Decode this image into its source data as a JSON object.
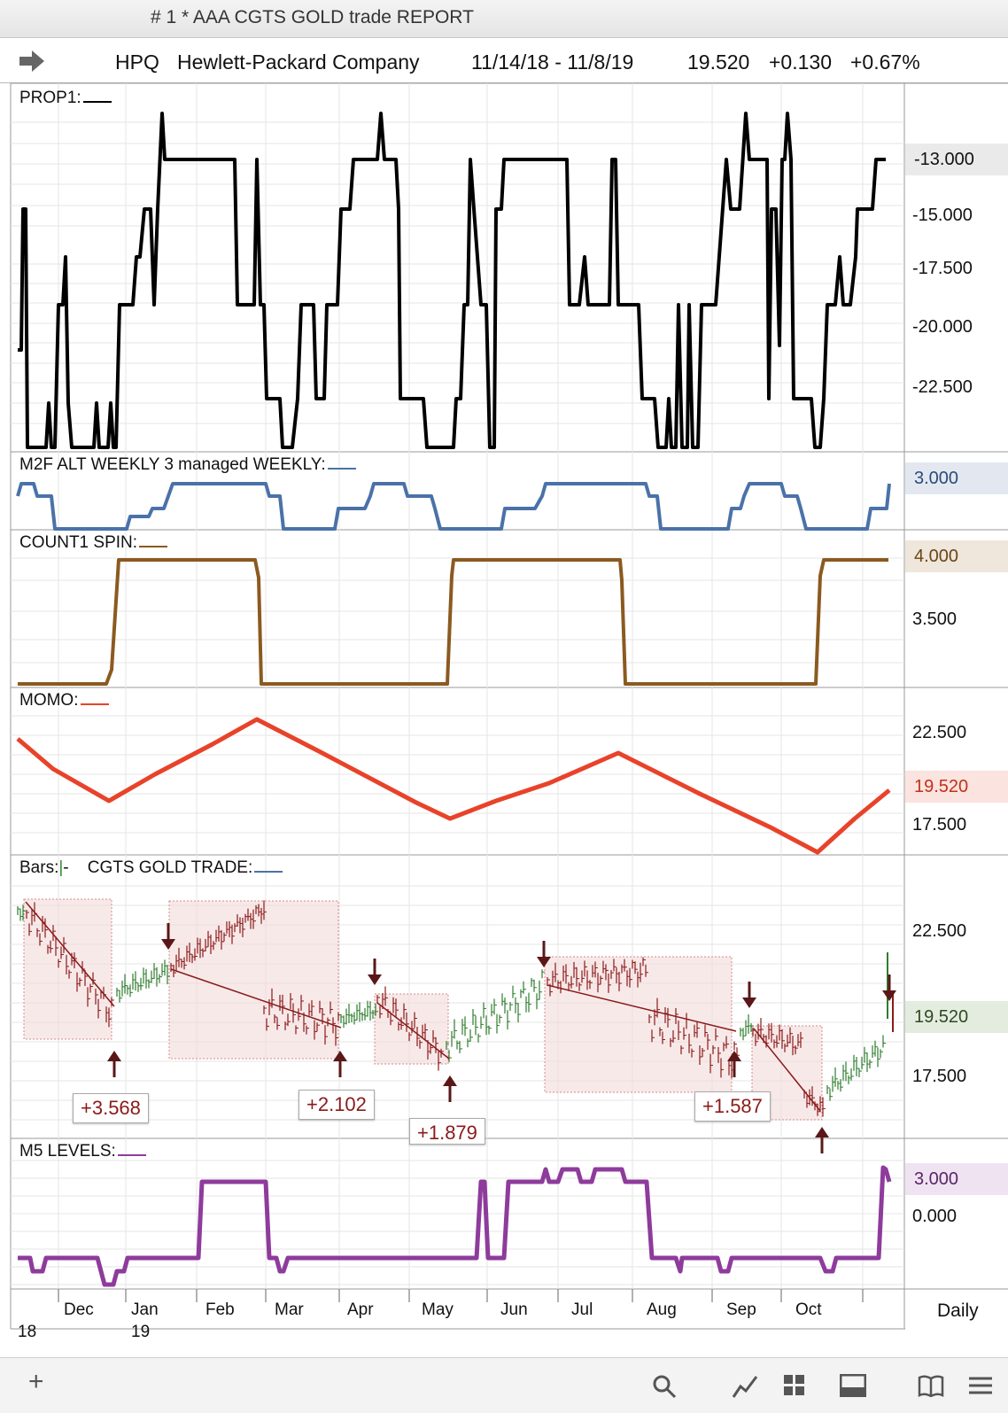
{
  "window": {
    "title": "# 1 *  AAA CGTS GOLD trade REPORT"
  },
  "header": {
    "symbol": "HPQ",
    "company": "Hewlett-Packard Company",
    "date_range": "11/14/18 - 11/8/19",
    "last": "19.520",
    "change": "+0.130",
    "change_pct": "+0.67%"
  },
  "panels": {
    "prop1": {
      "label": "PROP1:",
      "axis": [
        "-13.000",
        "-15.000",
        "-17.500",
        "-20.000",
        "-22.500"
      ],
      "tag": "-13.000"
    },
    "m2f": {
      "label": "M2F ALT WEEKLY 3 managed WEEKLY:",
      "tag": "3.000",
      "color": "#4a72a8"
    },
    "count1": {
      "label": "COUNT1 SPIN:",
      "axis": [
        "3.500"
      ],
      "tag": "4.000",
      "color": "#8b5a20"
    },
    "momo": {
      "label": "MOMO:",
      "axis": [
        "22.500",
        "17.500"
      ],
      "tag": "19.520",
      "color": "#e8432a"
    },
    "bars": {
      "label": "Bars:",
      "sublabel": "CGTS  GOLD TRADE:",
      "axis": [
        "22.500",
        "17.500"
      ],
      "tag": "19.520",
      "boxes": [
        "+3.568",
        "+2.102",
        "+1.879",
        "+1.587"
      ]
    },
    "m5": {
      "label": "M5 LEVELS:",
      "axis": [
        "0.000"
      ],
      "tag": "3.000",
      "color": "#8e3b9c"
    }
  },
  "xaxis": {
    "months": [
      "Dec",
      "Jan",
      "Feb",
      "Mar",
      "Apr",
      "May",
      "Jun",
      "Jul",
      "Aug",
      "Sep",
      "Oct"
    ],
    "years": [
      "18",
      "19"
    ],
    "period": "Daily"
  },
  "toolbar": {
    "icons": [
      "plus-icon",
      "search-icon",
      "line-chart-icon",
      "grid-icon",
      "panel-icon",
      "book-icon",
      "menu-icon"
    ]
  }
}
